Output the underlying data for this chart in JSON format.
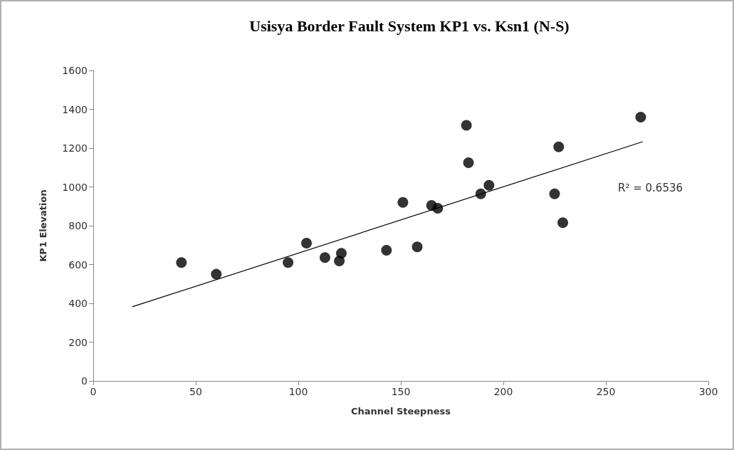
{
  "chart_data": {
    "type": "scatter",
    "title": "Usisya Border Fault System KP1 vs. Ksn1 (N-S)",
    "xlabel": "Channel Steepness",
    "ylabel": "KP1 Elevation",
    "series": [
      {
        "color": "#000000",
        "marker": "circle",
        "x": [
          43,
          60,
          95,
          104,
          113,
          120,
          121,
          143,
          158,
          151,
          165,
          168,
          182,
          183,
          189,
          193,
          225,
          227,
          229,
          267
        ],
        "values": [
          610,
          550,
          610,
          710,
          636,
          618,
          658,
          673,
          691,
          920,
          905,
          890,
          1317,
          1125,
          964,
          1008,
          964,
          1206,
          816,
          1360
        ]
      },
      {
        "type": "line",
        "marker": "none",
        "color": "#000000",
        "x": [
          19,
          268
        ],
        "values": [
          382,
          1233
        ]
      }
    ],
    "annotations": [
      "R² = 0.6536"
    ],
    "grid": false,
    "xlim": [
      0,
      300
    ],
    "xticks": [
      0,
      50,
      100,
      150,
      200,
      250,
      300
    ],
    "ylim": [
      0,
      1600
    ],
    "yticks": [
      0,
      200,
      400,
      600,
      800,
      1000,
      1200,
      1400,
      1600
    ]
  }
}
